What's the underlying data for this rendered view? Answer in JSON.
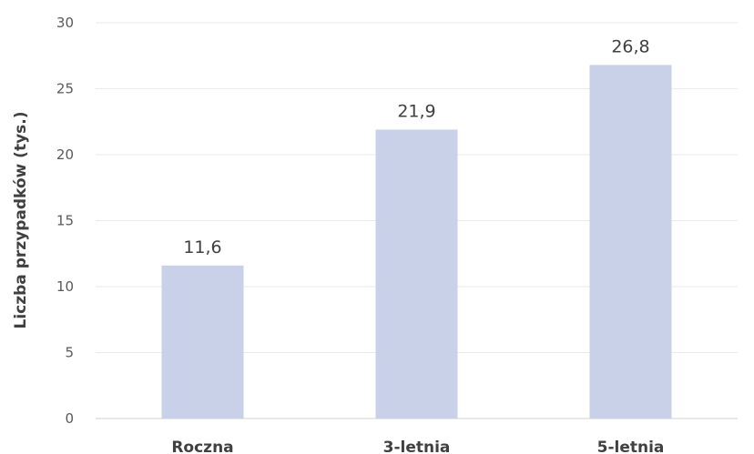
{
  "chart_data": {
    "type": "bar",
    "categories": [
      "Roczna",
      "3-letnia",
      "5-letnia"
    ],
    "values": [
      11.6,
      21.9,
      26.8
    ],
    "value_labels": [
      "11,6",
      "21,9",
      "26,8"
    ],
    "title": "",
    "xlabel": "",
    "ylabel": "Liczba przypadków (tys.)",
    "ylim": [
      0,
      30
    ],
    "yticks": [
      0,
      5,
      10,
      15,
      20,
      25,
      30
    ],
    "grid": true,
    "legend": "none",
    "bar_color": "#c9d1e8"
  }
}
